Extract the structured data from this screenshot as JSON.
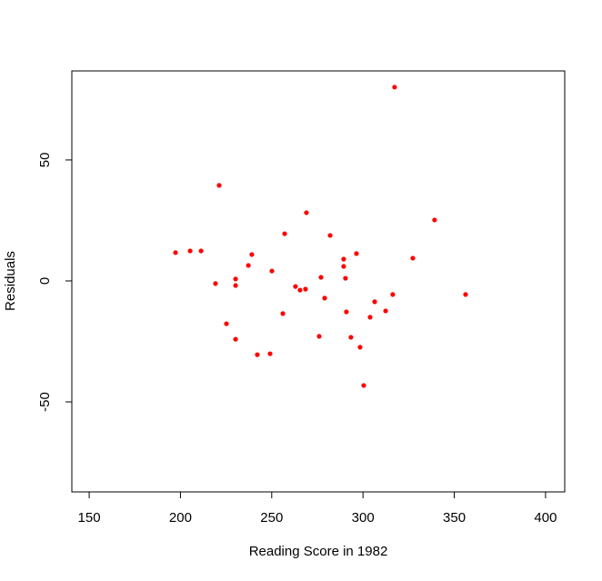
{
  "chart_data": {
    "type": "scatter",
    "xlabel": "Reading Score in 1982",
    "ylabel": "Residuals",
    "x": [
      317.3,
      221.2,
      269.0,
      339.2,
      257.1,
      282.0,
      197.3,
      205.3,
      211.3,
      239.1,
      296.4,
      327.3,
      289.4,
      237.2,
      289.4,
      250.1,
      277.0,
      230.2,
      290.4,
      219.2,
      230.2,
      263.0,
      265.5,
      268.5,
      316.3,
      356.2,
      279.0,
      306.4,
      290.9,
      312.4,
      256.1,
      303.9,
      225.2,
      276.0,
      293.4,
      230.2,
      298.4,
      242.1,
      249.1,
      300.4
    ],
    "values": [
      80.1,
      39.5,
      28.2,
      25.2,
      19.5,
      18.8,
      11.7,
      12.4,
      12.4,
      10.9,
      11.3,
      9.4,
      9.0,
      6.4,
      6.0,
      4.1,
      1.5,
      0.8,
      1.1,
      -1.1,
      -1.9,
      -2.3,
      -3.8,
      -3.4,
      -5.6,
      -5.6,
      -7.1,
      -8.6,
      -12.8,
      -12.4,
      -13.5,
      -15.0,
      -17.7,
      -22.9,
      -23.3,
      -24.1,
      -27.4,
      -30.5,
      -30.1,
      -43.2
    ],
    "color": "#ff0000",
    "xlim": [
      140.5,
      410.5
    ],
    "ylim": [
      -87.2,
      86.8
    ],
    "xticks": [
      150,
      200,
      250,
      300,
      350,
      400
    ],
    "yticks": [
      -50,
      0,
      50
    ],
    "grid": false
  }
}
